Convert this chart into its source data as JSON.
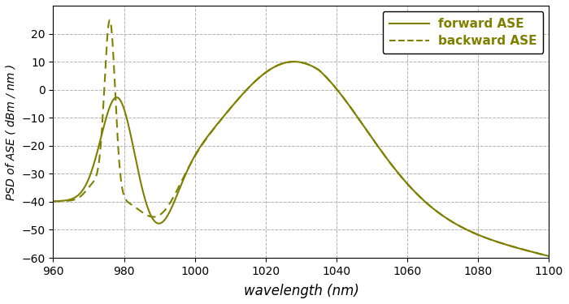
{
  "xlabel": "wavelength (nm)",
  "ylabel": "PSD of ASE (dBm/nm)",
  "xlim": [
    960,
    1100
  ],
  "ylim": [
    -60,
    30
  ],
  "yticks": [
    -60,
    -50,
    -40,
    -30,
    -20,
    -10,
    0,
    10,
    20
  ],
  "xticks": [
    960,
    980,
    1000,
    1020,
    1040,
    1060,
    1080,
    1100
  ],
  "line_color": "#808000",
  "background_color": "#ffffff",
  "grid_color": "#aaaaaa",
  "legend_labels": [
    "forward ASE",
    "backward ASE"
  ],
  "figsize": [
    7.0,
    3.75
  ],
  "dpi": 100
}
